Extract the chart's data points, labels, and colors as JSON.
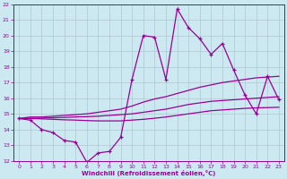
{
  "xlabel": "Windchill (Refroidissement éolien,°C)",
  "x": [
    0,
    1,
    2,
    3,
    4,
    5,
    6,
    7,
    8,
    9,
    10,
    11,
    12,
    13,
    14,
    15,
    16,
    17,
    18,
    19,
    20,
    21,
    22,
    23
  ],
  "line_actual": [
    14.7,
    14.6,
    14.0,
    13.8,
    13.3,
    13.2,
    11.9,
    12.5,
    12.6,
    13.5,
    17.2,
    20.0,
    19.9,
    17.2,
    21.7,
    20.5,
    19.8,
    18.8,
    19.5,
    17.8,
    16.2,
    15.0,
    17.4,
    15.9
  ],
  "line_upper": [
    14.7,
    14.8,
    14.8,
    14.85,
    14.9,
    14.95,
    15.0,
    15.1,
    15.2,
    15.3,
    15.5,
    15.75,
    15.95,
    16.1,
    16.3,
    16.5,
    16.7,
    16.85,
    17.0,
    17.1,
    17.2,
    17.3,
    17.35,
    17.4
  ],
  "line_mid": [
    14.7,
    14.72,
    14.73,
    14.75,
    14.77,
    14.8,
    14.82,
    14.85,
    14.9,
    14.95,
    15.0,
    15.1,
    15.2,
    15.3,
    15.45,
    15.6,
    15.7,
    15.8,
    15.85,
    15.9,
    15.95,
    16.0,
    16.05,
    16.1
  ],
  "line_lower": [
    14.7,
    14.7,
    14.68,
    14.65,
    14.62,
    14.6,
    14.57,
    14.55,
    14.55,
    14.55,
    14.6,
    14.65,
    14.72,
    14.8,
    14.9,
    15.0,
    15.1,
    15.2,
    15.25,
    15.3,
    15.35,
    15.38,
    15.4,
    15.42
  ],
  "color": "#990099",
  "bg_color": "#cce8f0",
  "grid_color": "#b0c8d0",
  "ylim": [
    12,
    22
  ],
  "xlim": [
    -0.5,
    23.5
  ]
}
